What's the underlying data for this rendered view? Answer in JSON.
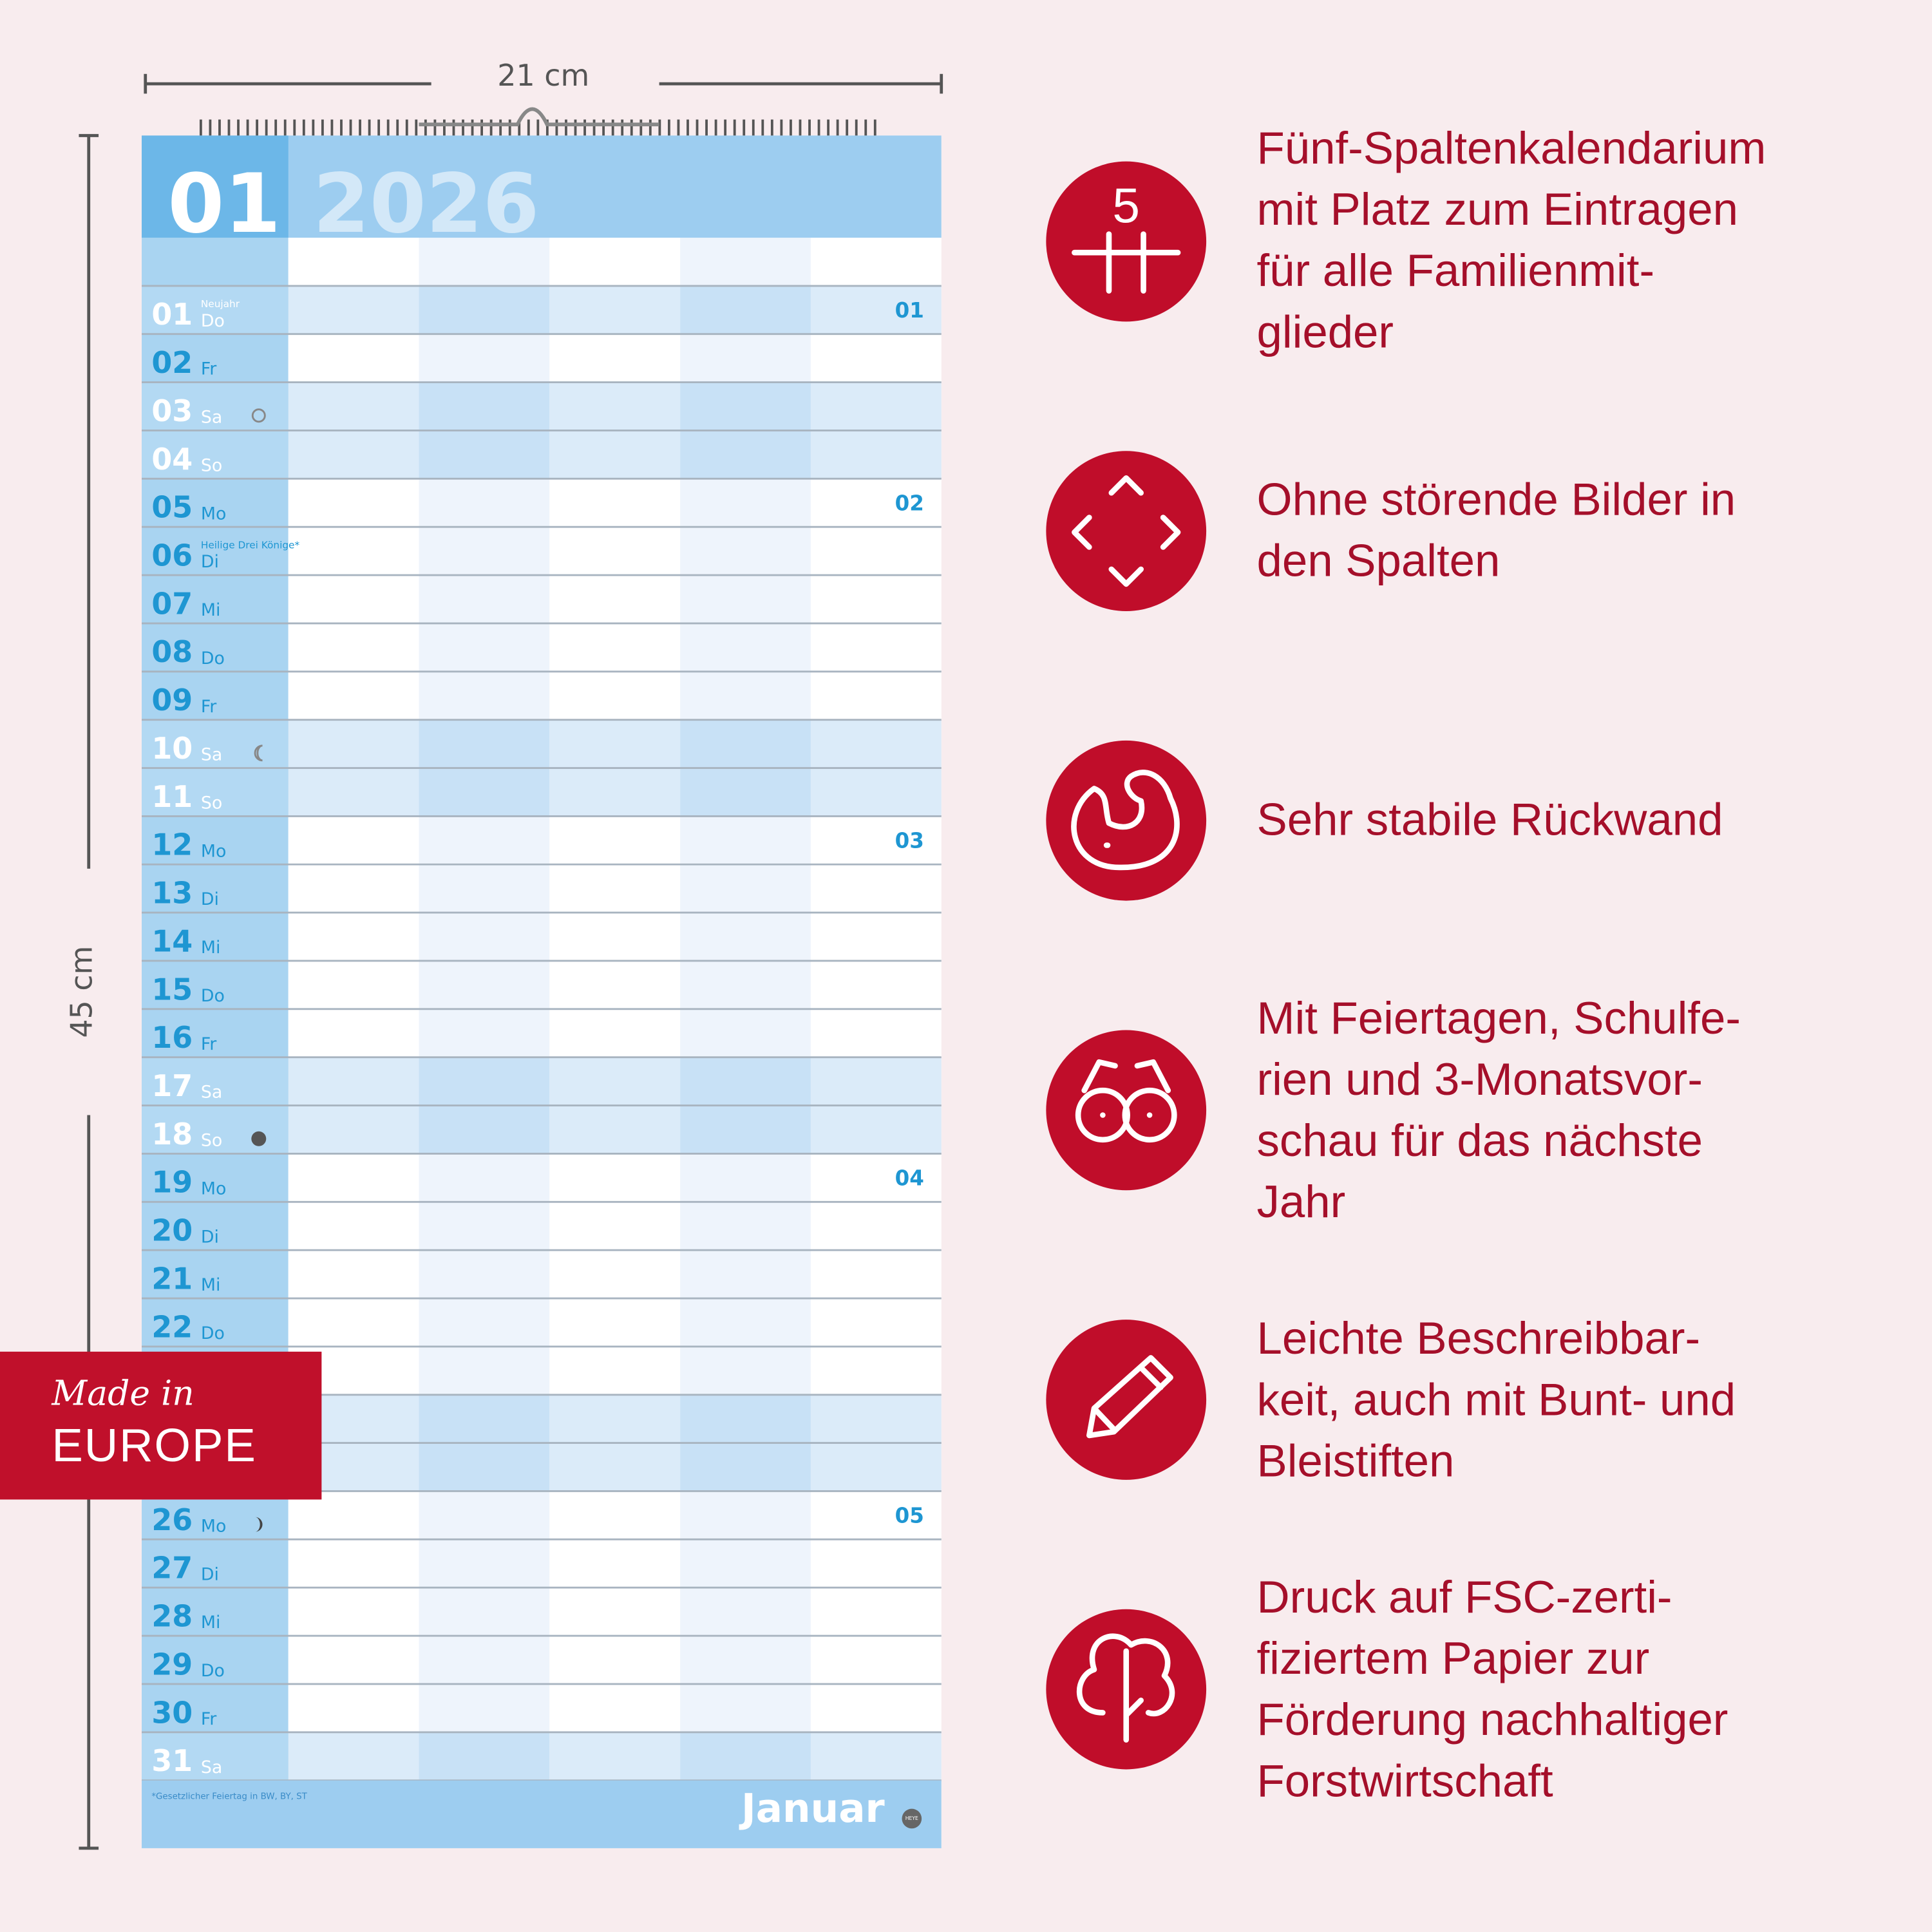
{
  "dimensions": {
    "width": "21 cm",
    "height": "45 cm"
  },
  "calendar": {
    "month_number": "01",
    "year": "2026",
    "days": [
      {
        "day": "01",
        "weekday": "Do",
        "note": "Neujahr",
        "week": "01",
        "holiday": true
      },
      {
        "day": "02",
        "weekday": "Fr"
      },
      {
        "day": "03",
        "weekday": "Sa"
      },
      {
        "day": "04",
        "weekday": "So"
      },
      {
        "day": "05",
        "weekday": "Mo",
        "week": "02"
      },
      {
        "day": "06",
        "weekday": "Di",
        "note": "Heilige Drei Könige*"
      },
      {
        "day": "07",
        "weekday": "Mi"
      },
      {
        "day": "08",
        "weekday": "Do"
      },
      {
        "day": "09",
        "weekday": "Fr"
      },
      {
        "day": "10",
        "weekday": "Sa"
      },
      {
        "day": "11",
        "weekday": "So"
      },
      {
        "day": "12",
        "weekday": "Mo",
        "week": "03"
      },
      {
        "day": "13",
        "weekday": "Di"
      },
      {
        "day": "14",
        "weekday": "Mi"
      },
      {
        "day": "15",
        "weekday": "Do"
      },
      {
        "day": "16",
        "weekday": "Fr"
      },
      {
        "day": "17",
        "weekday": "Sa"
      },
      {
        "day": "18",
        "weekday": "So"
      },
      {
        "day": "19",
        "weekday": "Mo",
        "week": "04"
      },
      {
        "day": "20",
        "weekday": "Di"
      },
      {
        "day": "21",
        "weekday": "Mi"
      },
      {
        "day": "22",
        "weekday": "Do"
      },
      null,
      null,
      null,
      {
        "day": "26",
        "weekday": "Mo",
        "week": "05"
      },
      {
        "day": "27",
        "weekday": "Di"
      },
      {
        "day": "28",
        "weekday": "Mi"
      },
      {
        "day": "29",
        "weekday": "Do"
      },
      {
        "day": "30",
        "weekday": "Fr"
      },
      {
        "day": "31",
        "weekday": "Sa"
      }
    ],
    "footnote": "*Gesetzlicher Feiertag in BW, BY, ST",
    "month_name": "Januar",
    "brand": "HEYE"
  },
  "badge": {
    "line1": "Made in",
    "line2": "EUROPE"
  },
  "features": [
    {
      "icon_text": "5",
      "lines": [
        "Fünf-Spaltenkalendarium",
        "mit Platz zum Eintragen",
        "für alle Familienmit-",
        "glieder"
      ]
    },
    {
      "lines": [
        "Ohne störende Bilder in",
        "den Spalten"
      ]
    },
    {
      "lines": [
        "Sehr stabile Rückwand"
      ]
    },
    {
      "lines": [
        "Mit Feiertagen, Schulfe-",
        "rien und 3-Monatsvor-",
        "schau für das nächste",
        "Jahr"
      ]
    },
    {
      "lines": [
        "Leichte Beschreibbar-",
        "keit, auch mit Bunt- und",
        "Bleistiften"
      ]
    },
    {
      "lines": [
        "Druck auf FSC-zerti-",
        "fiziertem Papier zur",
        "Förderung nachhaltiger",
        "Forstwirtschaft"
      ]
    }
  ]
}
